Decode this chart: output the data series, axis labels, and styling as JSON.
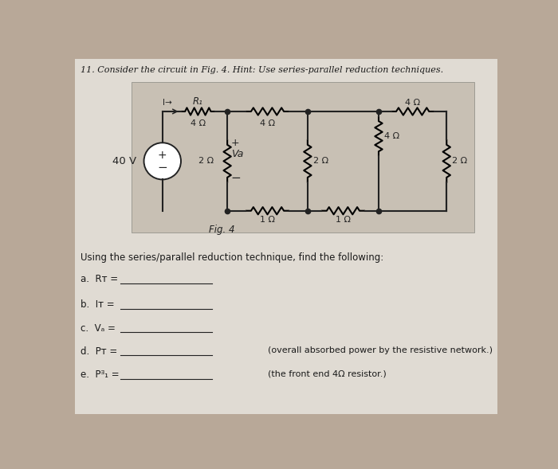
{
  "title": "11. Consider the circuit in Fig. 4. Hint: Use series-parallel reduction techniques.",
  "bg_color": "#b8a898",
  "paper_color": "#e0dbd3",
  "circuit_box_color": "#c8c0b4",
  "text_color": "#1a1a1a",
  "fig_label": "Fig. 4",
  "instruction": "Using the series/parallel reduction technique, find the following:",
  "line_color": "#222222",
  "font_size_title": 8.0,
  "font_size_body": 8.5,
  "font_size_circuit": 8.5
}
